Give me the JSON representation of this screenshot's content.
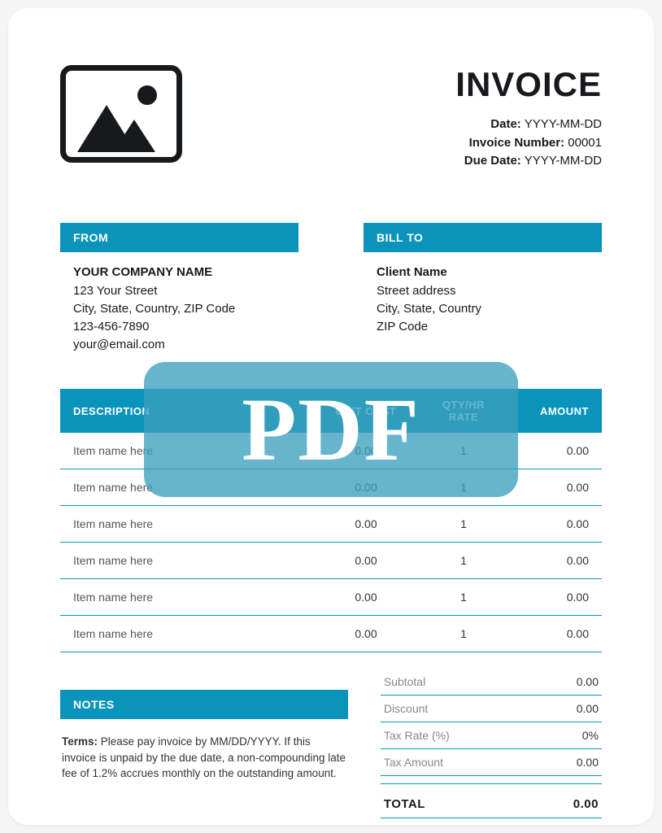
{
  "colors": {
    "accent": "#0b94bb",
    "text": "#17191c",
    "muted": "#888888",
    "page_bg": "#ffffff",
    "watermark_bg": "rgba(60,160,190,0.78)",
    "watermark_text": "#ffffff"
  },
  "header": {
    "title": "INVOICE",
    "date_label": "Date:",
    "date_value": "YYYY-MM-DD",
    "number_label": "Invoice Number:",
    "number_value": "00001",
    "due_label": "Due Date:",
    "due_value": "YYYY-MM-DD"
  },
  "from": {
    "heading": "FROM",
    "company": "YOUR COMPANY NAME",
    "street": "123 Your Street",
    "city_line": "City, State, Country, ZIP Code",
    "phone": "123-456-7890",
    "email": "your@email.com"
  },
  "bill_to": {
    "heading": "BILL TO",
    "name": "Client Name",
    "street": "Street address",
    "city_line": "City, State, Country",
    "zip": "ZIP Code"
  },
  "table": {
    "columns": {
      "description": "DESCRIPTION",
      "unit_cost": "UNIT COST",
      "qty": "QTY/HR RATE",
      "amount": "AMOUNT"
    },
    "rows": [
      {
        "desc": "Item name here",
        "unit": "0.00",
        "qty": "1",
        "amount": "0.00"
      },
      {
        "desc": "Item name here",
        "unit": "0.00",
        "qty": "1",
        "amount": "0.00"
      },
      {
        "desc": "Item name here",
        "unit": "0.00",
        "qty": "1",
        "amount": "0.00"
      },
      {
        "desc": "Item name here",
        "unit": "0.00",
        "qty": "1",
        "amount": "0.00"
      },
      {
        "desc": "Item name here",
        "unit": "0.00",
        "qty": "1",
        "amount": "0.00"
      },
      {
        "desc": "Item name here",
        "unit": "0.00",
        "qty": "1",
        "amount": "0.00"
      }
    ]
  },
  "notes": {
    "heading": "NOTES",
    "terms_label": "Terms:",
    "terms_body": "Please pay invoice by MM/DD/YYYY. If this invoice is unpaid by the due date, a non-compounding late fee of 1.2% accrues monthly on the outstanding amount."
  },
  "totals": {
    "subtotal_label": "Subtotal",
    "subtotal_value": "0.00",
    "discount_label": "Discount",
    "discount_value": "0.00",
    "taxrate_label": "Tax Rate (%)",
    "taxrate_value": "0%",
    "taxamt_label": "Tax Amount",
    "taxamt_value": "0.00",
    "total_label": "TOTAL",
    "total_value": "0.00"
  },
  "watermark": "PDF"
}
